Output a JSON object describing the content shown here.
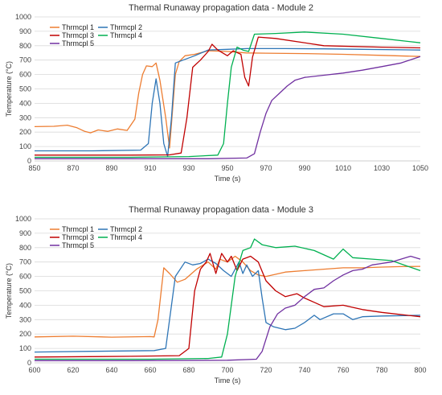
{
  "charts": [
    {
      "title": "Thermal Runaway propagation data  - Module 2",
      "xlabel": "Time (s)",
      "ylabel": "Temperature (°C)",
      "xticks": [
        "850",
        "870",
        "890",
        "910",
        "930",
        "950",
        "970",
        "990",
        "1010",
        "1030",
        "1050"
      ],
      "yticks": [
        "0",
        "100",
        "200",
        "300",
        "400",
        "500",
        "600",
        "700",
        "800",
        "900",
        "1000"
      ],
      "legend": [
        "Thrmcpl 1",
        "Thrmcpl 2",
        "Thrmcpl 3",
        "Thrmcpl 4",
        "Thrmcpl 5"
      ]
    },
    {
      "title": "Thermal Runaway propagation data  - Module 3",
      "xlabel": "Time (s)",
      "ylabel": "Temperature (°C)",
      "xticks": [
        "600",
        "620",
        "640",
        "660",
        "680",
        "700",
        "720",
        "740",
        "760",
        "780",
        "800"
      ],
      "yticks": [
        "0",
        "100",
        "200",
        "300",
        "400",
        "500",
        "600",
        "700",
        "800",
        "900",
        "1000"
      ],
      "legend": [
        "Thrmcpl 1",
        "Thrmcpl 2",
        "Thrmcpl 3",
        "Thrmcpl 4",
        "Thrmcpl 5"
      ]
    }
  ],
  "chart_data": [
    {
      "type": "line",
      "title": "Thermal Runaway propagation data  - Module 2",
      "xlabel": "Time (s)",
      "ylabel": "Temperature (°C)",
      "xlim": [
        850,
        1050
      ],
      "ylim": [
        0,
        1000
      ],
      "grid": true,
      "legend_position": "top-left",
      "series": [
        {
          "name": "Thrmcpl 1",
          "color": "#ED7D31",
          "points": [
            [
              850,
              238
            ],
            [
              860,
              240
            ],
            [
              867,
              248
            ],
            [
              872,
              230
            ],
            [
              876,
              205
            ],
            [
              879,
              195
            ],
            [
              883,
              215
            ],
            [
              888,
              205
            ],
            [
              893,
              222
            ],
            [
              898,
              212
            ],
            [
              902,
              290
            ],
            [
              904,
              470
            ],
            [
              906,
              600
            ],
            [
              908,
              660
            ],
            [
              911,
              655
            ],
            [
              913,
              680
            ],
            [
              915,
              560
            ],
            [
              918,
              300
            ],
            [
              920,
              90
            ],
            [
              923,
              600
            ],
            [
              925,
              690
            ],
            [
              928,
              730
            ],
            [
              933,
              740
            ],
            [
              940,
              765
            ],
            [
              950,
              760
            ],
            [
              960,
              750
            ],
            [
              970,
              748
            ],
            [
              990,
              745
            ],
            [
              1010,
              740
            ],
            [
              1030,
              733
            ],
            [
              1050,
              725
            ]
          ]
        },
        {
          "name": "Thrmcpl 2",
          "color": "#2E75B6",
          "points": [
            [
              850,
              70
            ],
            [
              880,
              70
            ],
            [
              905,
              75
            ],
            [
              909,
              120
            ],
            [
              911,
              400
            ],
            [
              913,
              570
            ],
            [
              915,
              400
            ],
            [
              917,
              120
            ],
            [
              919,
              30
            ],
            [
              921,
              300
            ],
            [
              923,
              680
            ],
            [
              927,
              700
            ],
            [
              933,
              730
            ],
            [
              940,
              770
            ],
            [
              950,
              775
            ],
            [
              960,
              780
            ],
            [
              980,
              780
            ],
            [
              1000,
              778
            ],
            [
              1020,
              775
            ],
            [
              1050,
              770
            ]
          ]
        },
        {
          "name": "Thrmcpl 3",
          "color": "#C00000",
          "points": [
            [
              850,
              40
            ],
            [
              900,
              40
            ],
            [
              920,
              42
            ],
            [
              926,
              55
            ],
            [
              929,
              300
            ],
            [
              932,
              650
            ],
            [
              936,
              700
            ],
            [
              940,
              760
            ],
            [
              942,
              810
            ],
            [
              945,
              770
            ],
            [
              950,
              730
            ],
            [
              953,
              765
            ],
            [
              957,
              740
            ],
            [
              959,
              580
            ],
            [
              961,
              520
            ],
            [
              963,
              720
            ],
            [
              966,
              860
            ],
            [
              975,
              850
            ],
            [
              1000,
              800
            ],
            [
              1030,
              790
            ],
            [
              1050,
              785
            ]
          ]
        },
        {
          "name": "Thrmcpl 4",
          "color": "#00B050",
          "points": [
            [
              850,
              25
            ],
            [
              900,
              25
            ],
            [
              930,
              30
            ],
            [
              945,
              40
            ],
            [
              948,
              120
            ],
            [
              950,
              400
            ],
            [
              952,
              650
            ],
            [
              955,
              790
            ],
            [
              958,
              770
            ],
            [
              961,
              760
            ],
            [
              964,
              880
            ],
            [
              975,
              885
            ],
            [
              990,
              895
            ],
            [
              1010,
              880
            ],
            [
              1030,
              850
            ],
            [
              1050,
              820
            ]
          ]
        },
        {
          "name": "Thrmcpl 5",
          "color": "#7030A0",
          "points": [
            [
              850,
              15
            ],
            [
              900,
              15
            ],
            [
              940,
              15
            ],
            [
              960,
              20
            ],
            [
              964,
              50
            ],
            [
              967,
              200
            ],
            [
              970,
              330
            ],
            [
              973,
              420
            ],
            [
              977,
              470
            ],
            [
              981,
              520
            ],
            [
              985,
              560
            ],
            [
              990,
              580
            ],
            [
              1000,
              595
            ],
            [
              1010,
              610
            ],
            [
              1020,
              630
            ],
            [
              1030,
              655
            ],
            [
              1040,
              680
            ],
            [
              1050,
              725
            ]
          ]
        }
      ]
    },
    {
      "type": "line",
      "title": "Thermal Runaway propagation data  - Module 3",
      "xlabel": "Time (s)",
      "ylabel": "Temperature (°C)",
      "xlim": [
        600,
        800
      ],
      "ylim": [
        0,
        1000
      ],
      "grid": true,
      "legend_position": "top-left",
      "series": [
        {
          "name": "Thrmcpl 1",
          "color": "#ED7D31",
          "points": [
            [
              600,
              180
            ],
            [
              620,
              185
            ],
            [
              640,
              178
            ],
            [
              660,
              182
            ],
            [
              662,
              180
            ],
            [
              664,
              300
            ],
            [
              667,
              660
            ],
            [
              670,
              620
            ],
            [
              674,
              560
            ],
            [
              678,
              580
            ],
            [
              684,
              650
            ],
            [
              690,
              700
            ],
            [
              694,
              650
            ],
            [
              696,
              720
            ],
            [
              700,
              700
            ],
            [
              704,
              740
            ],
            [
              708,
              700
            ],
            [
              712,
              640
            ],
            [
              716,
              610
            ],
            [
              720,
              600
            ],
            [
              730,
              630
            ],
            [
              740,
              640
            ],
            [
              750,
              650
            ],
            [
              760,
              660
            ],
            [
              770,
              660
            ],
            [
              780,
              665
            ],
            [
              790,
              668
            ],
            [
              800,
              670
            ]
          ]
        },
        {
          "name": "Thrmcpl 2",
          "color": "#2E75B6",
          "points": [
            [
              600,
              75
            ],
            [
              630,
              80
            ],
            [
              662,
              85
            ],
            [
              668,
              100
            ],
            [
              673,
              600
            ],
            [
              678,
              700
            ],
            [
              682,
              680
            ],
            [
              686,
              690
            ],
            [
              690,
              720
            ],
            [
              694,
              690
            ],
            [
              698,
              640
            ],
            [
              702,
              600
            ],
            [
              706,
              700
            ],
            [
              708,
              620
            ],
            [
              710,
              680
            ],
            [
              713,
              600
            ],
            [
              716,
              640
            ],
            [
              718,
              450
            ],
            [
              720,
              280
            ],
            [
              724,
              250
            ],
            [
              730,
              230
            ],
            [
              735,
              240
            ],
            [
              740,
              280
            ],
            [
              745,
              330
            ],
            [
              748,
              300
            ],
            [
              755,
              340
            ],
            [
              760,
              340
            ],
            [
              765,
              300
            ],
            [
              770,
              320
            ],
            [
              780,
              325
            ],
            [
              800,
              330
            ]
          ]
        },
        {
          "name": "Thrmcpl 3",
          "color": "#C00000",
          "points": [
            [
              600,
              40
            ],
            [
              650,
              45
            ],
            [
              675,
              50
            ],
            [
              680,
              100
            ],
            [
              683,
              500
            ],
            [
              686,
              650
            ],
            [
              689,
              700
            ],
            [
              691,
              760
            ],
            [
              694,
              620
            ],
            [
              697,
              760
            ],
            [
              700,
              700
            ],
            [
              702,
              740
            ],
            [
              705,
              640
            ],
            [
              708,
              720
            ],
            [
              712,
              740
            ],
            [
              716,
              700
            ],
            [
              720,
              570
            ],
            [
              725,
              500
            ],
            [
              730,
              460
            ],
            [
              736,
              480
            ],
            [
              740,
              450
            ],
            [
              745,
              420
            ],
            [
              750,
              390
            ],
            [
              760,
              400
            ],
            [
              770,
              370
            ],
            [
              780,
              350
            ],
            [
              800,
              320
            ]
          ]
        },
        {
          "name": "Thrmcpl 4",
          "color": "#00B050",
          "points": [
            [
              600,
              25
            ],
            [
              660,
              25
            ],
            [
              690,
              30
            ],
            [
              697,
              40
            ],
            [
              700,
              200
            ],
            [
              704,
              600
            ],
            [
              708,
              780
            ],
            [
              712,
              800
            ],
            [
              714,
              860
            ],
            [
              718,
              820
            ],
            [
              725,
              800
            ],
            [
              735,
              810
            ],
            [
              745,
              780
            ],
            [
              755,
              720
            ],
            [
              760,
              790
            ],
            [
              765,
              730
            ],
            [
              775,
              720
            ],
            [
              785,
              710
            ],
            [
              800,
              640
            ]
          ]
        },
        {
          "name": "Thrmcpl 5",
          "color": "#7030A0",
          "points": [
            [
              600,
              15
            ],
            [
              650,
              15
            ],
            [
              700,
              18
            ],
            [
              715,
              25
            ],
            [
              718,
              80
            ],
            [
              722,
              250
            ],
            [
              726,
              340
            ],
            [
              730,
              380
            ],
            [
              735,
              400
            ],
            [
              740,
              460
            ],
            [
              745,
              510
            ],
            [
              750,
              520
            ],
            [
              755,
              570
            ],
            [
              760,
              610
            ],
            [
              765,
              640
            ],
            [
              770,
              650
            ],
            [
              775,
              680
            ],
            [
              780,
              690
            ],
            [
              785,
              700
            ],
            [
              790,
              720
            ],
            [
              795,
              740
            ],
            [
              800,
              720
            ]
          ]
        }
      ]
    }
  ]
}
